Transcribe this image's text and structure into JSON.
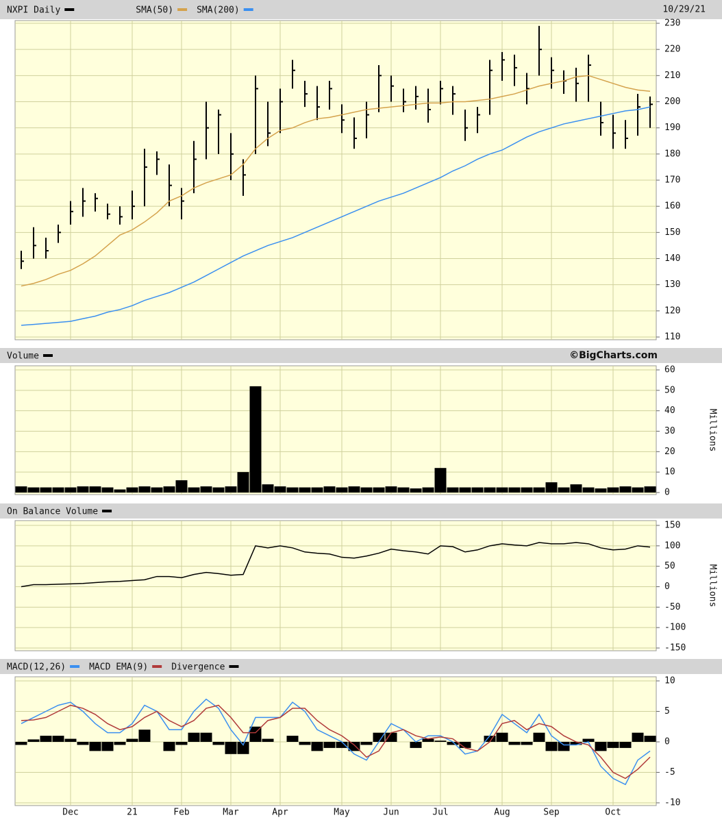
{
  "chart_data": {
    "type": "stock",
    "date": "10/29/21",
    "credit": "©BigCharts.com",
    "categories": [
      null,
      null,
      null,
      null,
      "Dec",
      null,
      null,
      null,
      null,
      "21",
      null,
      null,
      null,
      "Feb",
      null,
      null,
      null,
      "Mar",
      null,
      null,
      null,
      "Apr",
      null,
      null,
      null,
      null,
      "May",
      null,
      null,
      null,
      "Jun",
      null,
      null,
      null,
      "Jul",
      null,
      null,
      null,
      null,
      "Aug",
      null,
      null,
      null,
      "Sep",
      null,
      null,
      null,
      null,
      "Oct",
      null,
      null,
      null
    ],
    "panels": [
      {
        "type": "hlc",
        "ylim": [
          110,
          230
        ],
        "yticks": [
          110,
          120,
          130,
          140,
          150,
          160,
          170,
          180,
          190,
          200,
          210,
          220,
          230
        ],
        "grid": true,
        "series": [
          {
            "name": "NXPI Daily",
            "type": "hlc",
            "color": "#000000",
            "high": [
              143,
              152,
              148,
              153,
              162,
              167,
              165,
              161,
              160,
              166,
              182,
              181,
              176,
              167,
              185,
              200,
              197,
              188,
              178,
              210,
              200,
              205,
              216,
              208,
              206,
              208,
              199,
              194,
              200,
              214,
              210,
              205,
              206,
              205,
              208,
              206,
              197,
              198,
              216,
              219,
              218,
              211,
              229,
              217,
              212,
              213,
              218,
              200,
              195,
              193,
              203,
              202
            ],
            "low": [
              136,
              140,
              140,
              146,
              153,
              156,
              158,
              155,
              153,
              155,
              160,
              172,
              160,
              155,
              165,
              178,
              180,
              170,
              164,
              180,
              183,
              188,
              205,
              198,
              193,
              197,
              188,
              182,
              186,
              196,
              200,
              196,
              197,
              192,
              199,
              195,
              185,
              188,
              195,
              208,
              206,
              199,
              210,
              205,
              203,
              200,
              200,
              187,
              182,
              182,
              187,
              190
            ],
            "close": [
              139,
              145,
              143,
              150,
              158,
              162,
              163,
              157,
              156,
              160,
              175,
              178,
              168,
              162,
              178,
              190,
              195,
              180,
              172,
              205,
              188,
              200,
              212,
              203,
              198,
              205,
              193,
              186,
              195,
              210,
              206,
              200,
              202,
              197,
              205,
              203,
              190,
              195,
              212,
              216,
              213,
              205,
              220,
              212,
              208,
              207,
              214,
              192,
              188,
              186,
              198,
              199
            ]
          },
          {
            "name": "SMA(50)",
            "type": "line",
            "color": "#d4a24c",
            "values": [
              129.5,
              130.5,
              132,
              134,
              135.5,
              138,
              141,
              145,
              149,
              151,
              154,
              157.5,
              162,
              164,
              167,
              169,
              170.5,
              172,
              176,
              182,
              186,
              189,
              190,
              192,
              193.5,
              194,
              195,
              196,
              197,
              197.5,
              198,
              198.5,
              199,
              199.5,
              199.5,
              200,
              200,
              200.5,
              201,
              202,
              203,
              204.5,
              206,
              207,
              208,
              209.5,
              210,
              208.5,
              207,
              205.5,
              204.5,
              204
            ]
          },
          {
            "name": "SMA(200)",
            "type": "line",
            "color": "#3a8ff0",
            "values": [
              114.5,
              114.8,
              115.2,
              115.6,
              116,
              117,
              118,
              119.5,
              120.5,
              122,
              124,
              125.5,
              127,
              129,
              131,
              133.5,
              136,
              138.5,
              141,
              143,
              145,
              146.5,
              148,
              150,
              152,
              154,
              156,
              158,
              160,
              162,
              163.5,
              165,
              167,
              169,
              171,
              173.5,
              175.5,
              178,
              180,
              181.5,
              184,
              186.5,
              188.5,
              190,
              191.5,
              192.5,
              193.5,
              194.5,
              195.5,
              196.5,
              197,
              198
            ]
          }
        ]
      },
      {
        "type": "bar",
        "ylim": [
          0,
          60
        ],
        "yticks": [
          0,
          10,
          20,
          30,
          40,
          50,
          60
        ],
        "unit": "Millions",
        "grid": true,
        "series": [
          {
            "name": "Volume",
            "type": "bar",
            "color": "#000000",
            "values": [
              3,
              2.5,
              2.5,
              2.5,
              2.5,
              3,
              3,
              2.5,
              1.5,
              2.5,
              3,
              2.5,
              3,
              6,
              2.5,
              3,
              2.5,
              3,
              10,
              52,
              4,
              3,
              2.5,
              2.5,
              2.5,
              3,
              2.5,
              3,
              2.5,
              2.5,
              3,
              2.5,
              2,
              2.5,
              12,
              2.5,
              2.5,
              2.5,
              2.5,
              2.5,
              2.5,
              2.5,
              2.5,
              5,
              2.5,
              4,
              2.5,
              2,
              2.5,
              3,
              2.5,
              3
            ]
          }
        ]
      },
      {
        "type": "line",
        "ylim": [
          -150,
          150
        ],
        "yticks": [
          -150,
          -100,
          -50,
          0,
          50,
          100,
          150
        ],
        "unit": "Millions",
        "grid": true,
        "series": [
          {
            "name": "On Balance Volume",
            "type": "line",
            "color": "#000000",
            "values": [
              0,
              5,
              5,
              6,
              7,
              8,
              10,
              12,
              13,
              15,
              17,
              25,
              25,
              22,
              30,
              35,
              32,
              28,
              30,
              100,
              95,
              100,
              95,
              85,
              82,
              80,
              72,
              70,
              75,
              82,
              92,
              88,
              85,
              80,
              100,
              98,
              85,
              90,
              100,
              105,
              102,
              100,
              108,
              105,
              105,
              108,
              105,
              95,
              90,
              92,
              100,
              97
            ]
          }
        ]
      },
      {
        "type": "line",
        "ylim": [
          -10,
          10
        ],
        "yticks": [
          -10,
          -5,
          0,
          5,
          10
        ],
        "grid": true,
        "series": [
          {
            "name": "MACD(12,26)",
            "type": "line",
            "color": "#3a8ff0",
            "values": [
              3,
              4,
              5,
              6,
              6.5,
              5,
              3,
              1.5,
              1.5,
              3,
              6,
              5,
              2,
              2,
              5,
              7,
              5.5,
              2,
              -0.5,
              4,
              4,
              4,
              6.5,
              5,
              2,
              1,
              0,
              -2,
              -3,
              0,
              3,
              2,
              0,
              1,
              1,
              0,
              -2,
              -1.5,
              1,
              4.5,
              3,
              1.5,
              4.5,
              1,
              -0.5,
              -0.5,
              0,
              -4,
              -6,
              -7,
              -3,
              -1.5
            ]
          },
          {
            "name": "MACD EMA(9)",
            "type": "line",
            "color": "#b03a3a",
            "values": [
              3.5,
              3.6,
              4,
              5,
              6,
              5.5,
              4.5,
              3,
              2,
              2.5,
              4,
              5,
              3.5,
              2.5,
              3.5,
              5.5,
              6,
              4,
              1.5,
              1.5,
              3.5,
              4,
              5.5,
              5.5,
              3.5,
              2,
              1,
              -0.5,
              -2.5,
              -1.5,
              1.5,
              2,
              1,
              0.5,
              0.8,
              0.5,
              -1,
              -1.5,
              0,
              3,
              3.5,
              2,
              3,
              2.5,
              1,
              0,
              -0.5,
              -2.5,
              -5,
              -6,
              -4.5,
              -2.5
            ]
          },
          {
            "name": "Divergence",
            "type": "bar",
            "color": "#000000",
            "values": [
              -0.5,
              0.4,
              1,
              1,
              0.5,
              -0.5,
              -1.5,
              -1.5,
              -0.5,
              0.5,
              2,
              0,
              -1.5,
              -0.5,
              1.5,
              1.5,
              -0.5,
              -2,
              -2,
              2.5,
              0.5,
              0,
              1,
              -0.5,
              -1.5,
              -1,
              -1,
              -1.5,
              -0.5,
              1.5,
              1.5,
              0,
              -1,
              0.5,
              0.2,
              -0.5,
              -1,
              0,
              1,
              1.5,
              -0.5,
              -0.5,
              1.5,
              -1.5,
              -1.5,
              -0.5,
              0.5,
              -1.5,
              -1,
              -1,
              1.5,
              1
            ]
          }
        ]
      }
    ]
  }
}
